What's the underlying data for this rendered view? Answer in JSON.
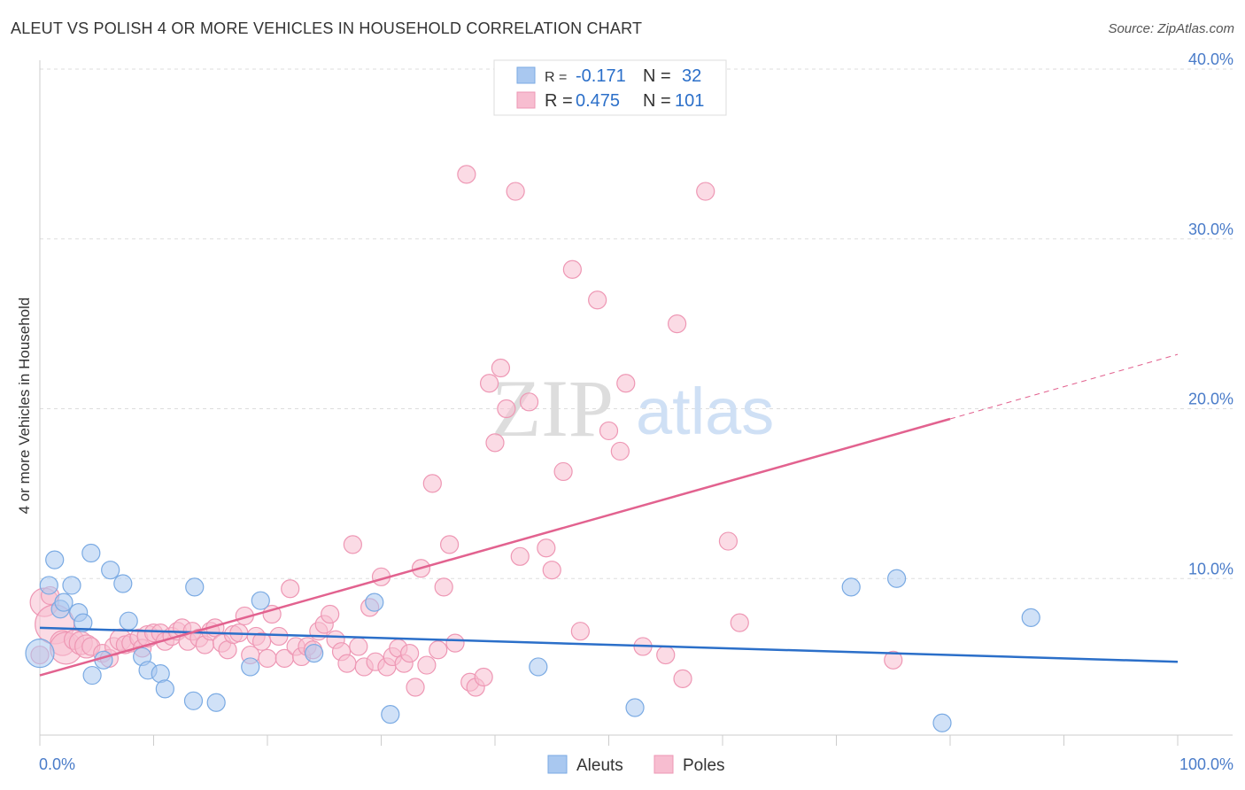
{
  "title": "ALEUT VS POLISH 4 OR MORE VEHICLES IN HOUSEHOLD CORRELATION CHART",
  "source": "Source: ZipAtlas.com",
  "watermark": {
    "zip": "ZIP",
    "atlas": "atlas"
  },
  "chart_data": {
    "type": "scatter",
    "xlabel": "",
    "ylabel": "4 or more Vehicles in Household",
    "xlim": [
      0,
      100
    ],
    "ylim": [
      0,
      40
    ],
    "x_tick_labels": [
      "0.0%",
      "100.0%"
    ],
    "y_ticks": [
      10,
      20,
      30,
      40
    ],
    "y_tick_labels": [
      "10.0%",
      "20.0%",
      "30.0%",
      "40.0%"
    ],
    "grid": true,
    "legend": {
      "placement": "top-center",
      "entries": [
        {
          "swatch": "blue",
          "r_label": "R = ",
          "r_value": "-0.171",
          "n_label": "N = ",
          "n_value": "32"
        },
        {
          "swatch": "pink",
          "r_label": "R = ",
          "r_value": "0.475",
          "n_label": "N = ",
          "n_value": "101"
        }
      ]
    },
    "bottom_legend": [
      "Aleuts",
      "Poles"
    ],
    "colors": {
      "blue_fill": "#a9c8f0",
      "blue_stroke": "#7aaae3",
      "blue_line": "#2b6fc9",
      "pink_fill": "#f7bdd0",
      "pink_stroke": "#ee97b4",
      "pink_line": "#e2628f",
      "tick_text": "#4a7cc9",
      "grid": "#dddddd"
    },
    "series": [
      {
        "name": "Aleuts",
        "color": "blue",
        "trend": {
          "x0": 0,
          "y0": 7.1,
          "x1": 100,
          "y1": 5.1
        },
        "points": [
          [
            0,
            5.6,
            16
          ],
          [
            0.8,
            9.6,
            10
          ],
          [
            1.3,
            11.1,
            10
          ],
          [
            1.8,
            8.2,
            10
          ],
          [
            2.1,
            8.6,
            10
          ],
          [
            2.8,
            9.6,
            10
          ],
          [
            3.4,
            8.0,
            10
          ],
          [
            3.8,
            7.4,
            10
          ],
          [
            4.6,
            4.3,
            10
          ],
          [
            4.5,
            11.5,
            10
          ],
          [
            5.6,
            5.2,
            10
          ],
          [
            6.2,
            10.5,
            10
          ],
          [
            7.3,
            9.7,
            10
          ],
          [
            7.8,
            7.5,
            10
          ],
          [
            9.0,
            5.4,
            10
          ],
          [
            9.5,
            4.6,
            10
          ],
          [
            10.6,
            4.4,
            10
          ],
          [
            11.0,
            3.5,
            10
          ],
          [
            13.5,
            2.8,
            10
          ],
          [
            13.6,
            9.5,
            10
          ],
          [
            15.5,
            2.7,
            10
          ],
          [
            18.5,
            4.8,
            10
          ],
          [
            19.4,
            8.7,
            10
          ],
          [
            24.1,
            5.6,
            10
          ],
          [
            29.4,
            8.6,
            10
          ],
          [
            30.8,
            2.0,
            10
          ],
          [
            43.8,
            4.8,
            10
          ],
          [
            52.3,
            2.4,
            10
          ],
          [
            71.3,
            9.5,
            10
          ],
          [
            75.3,
            10.0,
            10
          ],
          [
            79.3,
            1.5,
            10
          ],
          [
            87.1,
            7.7,
            10
          ]
        ]
      },
      {
        "name": "Poles",
        "color": "pink",
        "trend": {
          "x0": 0,
          "y0": 4.3,
          "x1": 80,
          "y1": 19.4,
          "dash_to_x": 100,
          "dash_to_y": 23.2
        },
        "points": [
          [
            0.4,
            8.6,
            16
          ],
          [
            0.9,
            9.0,
            10
          ],
          [
            1.3,
            7.3,
            22
          ],
          [
            2.0,
            6.2,
            14
          ],
          [
            2.3,
            5.9,
            18
          ],
          [
            3.0,
            6.4,
            11
          ],
          [
            3.6,
            6.2,
            13
          ],
          [
            4.1,
            6.0,
            13
          ],
          [
            4.5,
            6.0,
            10
          ],
          [
            5.5,
            5.6,
            10
          ],
          [
            6.1,
            5.3,
            10
          ],
          [
            6.5,
            6.0,
            10
          ],
          [
            7.1,
            6.4,
            12
          ],
          [
            7.5,
            6.1,
            10
          ],
          [
            8.0,
            6.2,
            10
          ],
          [
            8.7,
            6.5,
            10
          ],
          [
            9.0,
            5.9,
            10
          ],
          [
            9.5,
            6.6,
            12
          ],
          [
            10.0,
            6.8,
            10
          ],
          [
            10.6,
            6.8,
            10
          ],
          [
            11.0,
            6.3,
            10
          ],
          [
            11.6,
            6.6,
            10
          ],
          [
            12.1,
            6.9,
            10
          ],
          [
            12.5,
            7.1,
            10
          ],
          [
            13.0,
            6.3,
            10
          ],
          [
            13.4,
            6.9,
            10
          ],
          [
            14.0,
            6.5,
            10
          ],
          [
            14.5,
            6.1,
            10
          ],
          [
            15.0,
            6.9,
            10
          ],
          [
            15.4,
            7.1,
            10
          ],
          [
            16.0,
            6.2,
            10
          ],
          [
            16.5,
            5.8,
            10
          ],
          [
            17.0,
            6.7,
            10
          ],
          [
            17.5,
            6.8,
            10
          ],
          [
            18.0,
            7.8,
            10
          ],
          [
            18.5,
            5.5,
            10
          ],
          [
            19.0,
            6.6,
            10
          ],
          [
            19.5,
            6.3,
            10
          ],
          [
            20.0,
            5.3,
            10
          ],
          [
            20.4,
            7.9,
            10
          ],
          [
            21.0,
            6.6,
            10
          ],
          [
            21.5,
            5.3,
            10
          ],
          [
            22.0,
            9.4,
            10
          ],
          [
            22.5,
            6.0,
            10
          ],
          [
            23.0,
            5.4,
            10
          ],
          [
            23.5,
            6.0,
            10
          ],
          [
            24.0,
            5.8,
            10
          ],
          [
            24.5,
            6.9,
            10
          ],
          [
            25.0,
            7.3,
            10
          ],
          [
            25.5,
            7.9,
            10
          ],
          [
            26.0,
            6.4,
            10
          ],
          [
            26.5,
            5.7,
            10
          ],
          [
            27.0,
            5.0,
            10
          ],
          [
            27.5,
            12.0,
            10
          ],
          [
            28.0,
            6.0,
            10
          ],
          [
            28.5,
            4.8,
            10
          ],
          [
            29.0,
            8.3,
            10
          ],
          [
            29.5,
            5.1,
            10
          ],
          [
            30.0,
            10.1,
            10
          ],
          [
            30.5,
            4.8,
            10
          ],
          [
            31.0,
            5.4,
            10
          ],
          [
            31.5,
            5.9,
            10
          ],
          [
            32.0,
            5.0,
            10
          ],
          [
            32.5,
            5.6,
            10
          ],
          [
            33.0,
            3.6,
            10
          ],
          [
            33.5,
            10.6,
            10
          ],
          [
            34.0,
            4.9,
            10
          ],
          [
            34.5,
            15.6,
            10
          ],
          [
            35.0,
            5.8,
            10
          ],
          [
            35.5,
            9.5,
            10
          ],
          [
            36.0,
            12.0,
            10
          ],
          [
            36.5,
            6.2,
            10
          ],
          [
            37.5,
            33.8,
            10
          ],
          [
            37.8,
            3.9,
            10
          ],
          [
            38.3,
            3.6,
            10
          ],
          [
            39.0,
            4.2,
            10
          ],
          [
            39.5,
            21.5,
            10
          ],
          [
            40.0,
            18.0,
            10
          ],
          [
            40.5,
            22.4,
            10
          ],
          [
            41.0,
            20.0,
            10
          ],
          [
            41.8,
            32.8,
            10
          ],
          [
            42.2,
            11.3,
            10
          ],
          [
            43.0,
            20.4,
            10
          ],
          [
            44.5,
            11.8,
            10
          ],
          [
            45.0,
            10.5,
            10
          ],
          [
            46.0,
            16.3,
            10
          ],
          [
            46.8,
            28.2,
            10
          ],
          [
            47.5,
            6.9,
            10
          ],
          [
            49.0,
            26.4,
            10
          ],
          [
            50.0,
            18.7,
            10
          ],
          [
            51.0,
            17.5,
            10
          ],
          [
            51.5,
            21.5,
            10
          ],
          [
            53.0,
            6.0,
            10
          ],
          [
            55.0,
            5.5,
            10
          ],
          [
            56.0,
            25.0,
            10
          ],
          [
            56.5,
            4.1,
            10
          ],
          [
            58.5,
            32.8,
            10
          ],
          [
            60.5,
            12.2,
            10
          ],
          [
            61.5,
            7.4,
            10
          ],
          [
            75.0,
            5.2,
            10
          ],
          [
            0.0,
            5.5,
            10
          ]
        ]
      }
    ]
  }
}
